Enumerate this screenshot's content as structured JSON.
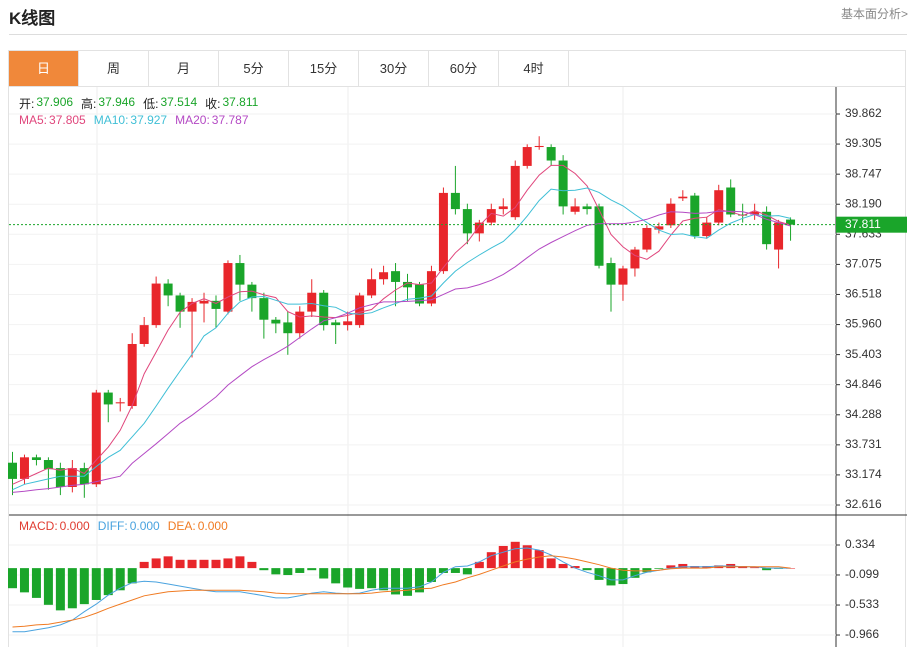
{
  "header": {
    "title": "K线图",
    "link": "基本面分析>"
  },
  "tabs": [
    "日",
    "周",
    "月",
    "5分",
    "15分",
    "30分",
    "60分",
    "4时"
  ],
  "active_tab": 0,
  "chart_data": [
    {
      "type": "candlestick",
      "up_color": "#e8262b",
      "down_color": "#1aa52a",
      "ohlc_labels": [
        "开:",
        "高:",
        "低:",
        "收:"
      ],
      "open": [
        33.4,
        33.1,
        33.5,
        33.45,
        33.3,
        32.95,
        33.3,
        33.0,
        34.7,
        34.5,
        34.45,
        35.6,
        35.95,
        36.72,
        36.5,
        36.2,
        36.35,
        36.4,
        36.2,
        37.1,
        36.7,
        36.45,
        36.05,
        36.0,
        35.8,
        36.2,
        36.55,
        36.0,
        35.95,
        35.95,
        36.5,
        36.8,
        36.95,
        36.75,
        36.7,
        36.35,
        36.95,
        38.4,
        38.1,
        37.65,
        37.85,
        38.1,
        37.95,
        38.9,
        39.25,
        39.25,
        39.0,
        38.05,
        38.15,
        38.15,
        37.1,
        36.7,
        37.0,
        37.35,
        37.72,
        37.8,
        38.3,
        38.35,
        37.6,
        37.85,
        38.5,
        38.0,
        38.0,
        38.05,
        37.35,
        37.906
      ],
      "high": [
        33.6,
        33.55,
        33.55,
        33.5,
        33.4,
        33.45,
        33.4,
        34.75,
        34.75,
        34.6,
        35.8,
        36.1,
        36.85,
        36.8,
        36.55,
        36.45,
        36.55,
        36.5,
        37.15,
        37.25,
        36.75,
        36.55,
        36.1,
        36.2,
        36.3,
        36.8,
        36.6,
        36.05,
        36.2,
        36.55,
        37.0,
        37.05,
        37.1,
        36.9,
        36.75,
        37.05,
        38.5,
        38.9,
        38.2,
        37.9,
        38.2,
        38.3,
        39.0,
        39.3,
        39.45,
        39.3,
        39.1,
        38.3,
        38.2,
        38.2,
        37.2,
        37.05,
        37.4,
        37.8,
        37.85,
        38.3,
        38.45,
        38.4,
        37.95,
        38.55,
        38.65,
        38.2,
        38.2,
        38.15,
        37.9,
        37.946
      ],
      "low": [
        32.8,
        33.0,
        33.35,
        32.9,
        32.8,
        32.85,
        32.75,
        32.95,
        34.15,
        34.35,
        34.4,
        35.55,
        35.9,
        36.3,
        35.9,
        35.35,
        36.0,
        35.9,
        36.15,
        36.4,
        36.2,
        35.7,
        35.8,
        35.4,
        35.7,
        36.1,
        35.85,
        35.6,
        35.85,
        35.9,
        36.45,
        36.7,
        36.3,
        36.4,
        36.3,
        36.3,
        36.9,
        38.0,
        37.45,
        37.5,
        37.8,
        38.0,
        37.9,
        38.85,
        39.2,
        38.9,
        38.0,
        38.0,
        38.0,
        37.0,
        36.2,
        36.4,
        36.85,
        37.3,
        37.65,
        37.75,
        38.25,
        37.55,
        37.55,
        37.8,
        37.95,
        37.85,
        37.9,
        37.35,
        37.0,
        37.514
      ],
      "close": [
        33.1,
        33.5,
        33.45,
        33.28,
        32.95,
        33.3,
        33.0,
        34.7,
        34.48,
        34.52,
        35.6,
        35.95,
        36.72,
        36.5,
        36.2,
        36.38,
        36.4,
        36.25,
        37.1,
        36.7,
        36.45,
        36.05,
        35.98,
        35.8,
        36.2,
        36.55,
        35.95,
        35.95,
        36.02,
        36.5,
        36.8,
        36.93,
        36.75,
        36.65,
        36.35,
        36.95,
        38.4,
        38.1,
        37.65,
        37.85,
        38.1,
        38.15,
        38.9,
        39.25,
        39.27,
        39.0,
        38.15,
        38.15,
        38.1,
        37.05,
        36.7,
        37.0,
        37.35,
        37.75,
        37.78,
        38.2,
        38.33,
        37.6,
        37.85,
        38.45,
        38.0,
        37.98,
        38.05,
        37.45,
        37.85,
        37.811
      ],
      "series": [
        {
          "name": "MA5:",
          "color": "#e0467c",
          "values": [
            33.0,
            33.1,
            33.2,
            33.3,
            33.26,
            33.3,
            33.2,
            33.45,
            33.69,
            34.0,
            34.46,
            35.05,
            35.45,
            35.86,
            36.19,
            36.35,
            36.44,
            36.35,
            36.47,
            36.57,
            36.58,
            36.51,
            36.46,
            36.2,
            36.1,
            36.12,
            36.1,
            36.09,
            36.13,
            36.19,
            36.24,
            36.44,
            36.6,
            36.73,
            36.7,
            36.73,
            37.02,
            37.29,
            37.49,
            37.79,
            38.02,
            37.97,
            38.13,
            38.45,
            38.73,
            38.91,
            38.91,
            38.76,
            38.53,
            38.09,
            37.63,
            37.4,
            37.24,
            37.17,
            37.32,
            37.62,
            37.88,
            37.93,
            37.95,
            38.09,
            38.05,
            37.98,
            38.07,
            37.99,
            37.87,
            37.805
          ]
        },
        {
          "name": "MA10:",
          "color": "#3fbfd6",
          "values": [
            32.9,
            33.0,
            33.05,
            33.1,
            33.15,
            33.15,
            33.15,
            33.33,
            33.5,
            33.63,
            33.88,
            34.13,
            34.45,
            34.78,
            35.1,
            35.41,
            35.75,
            35.9,
            36.17,
            36.38,
            36.47,
            36.48,
            36.41,
            36.34,
            36.34,
            36.35,
            36.31,
            36.28,
            36.17,
            36.15,
            36.18,
            36.27,
            36.35,
            36.43,
            36.45,
            36.49,
            36.73,
            36.95,
            37.11,
            37.25,
            37.38,
            37.5,
            37.71,
            37.97,
            38.26,
            38.47,
            38.44,
            38.45,
            38.49,
            38.41,
            38.27,
            38.16,
            38.0,
            37.85,
            37.71,
            37.63,
            37.64,
            37.59,
            37.56,
            37.71,
            37.84,
            37.93,
            38.0,
            37.97,
            37.98,
            37.927
          ]
        },
        {
          "name": "MA20:",
          "color": "#b44ac4",
          "values": [
            32.85,
            32.87,
            32.9,
            32.92,
            32.95,
            32.98,
            33.0,
            33.05,
            33.1,
            33.15,
            33.39,
            33.57,
            33.75,
            33.94,
            34.13,
            34.28,
            34.45,
            34.62,
            34.84,
            35.01,
            35.18,
            35.31,
            35.43,
            35.56,
            35.72,
            35.88,
            36.03,
            36.09,
            36.17,
            36.27,
            36.33,
            36.38,
            36.38,
            36.39,
            36.4,
            36.42,
            36.52,
            36.62,
            36.64,
            36.7,
            36.78,
            36.89,
            37.03,
            37.2,
            37.36,
            37.48,
            37.59,
            37.7,
            37.8,
            37.83,
            37.83,
            37.83,
            37.86,
            37.91,
            37.99,
            38.05,
            38.04,
            38.02,
            38.03,
            38.06,
            38.06,
            38.05,
            38.0,
            37.91,
            37.85,
            37.787
          ]
        }
      ],
      "ylim": [
        32.431,
        40.344
      ],
      "yticks": [
        39.862,
        39.305,
        38.747,
        {
          "value": 38.19,
          "label": "38.190"
        },
        37.633,
        37.075,
        36.518,
        {
          "value": 35.96,
          "label": "35.960"
        },
        35.403,
        34.846,
        34.288,
        33.731,
        33.174,
        32.616
      ],
      "grid": true
    },
    {
      "type": "macd",
      "up_color": "#e8262b",
      "down_color": "#1aa52a",
      "bar": {
        "name": "MACD:",
        "color": "#e03c31",
        "value_label": "0.000",
        "values": [
          -0.29,
          -0.35,
          -0.43,
          -0.53,
          -0.61,
          -0.58,
          -0.52,
          -0.46,
          -0.39,
          -0.32,
          -0.22,
          0.09,
          0.14,
          0.17,
          0.12,
          0.12,
          0.12,
          0.12,
          0.14,
          0.17,
          0.09,
          -0.03,
          -0.09,
          -0.1,
          -0.07,
          -0.03,
          -0.15,
          -0.22,
          -0.28,
          -0.3,
          -0.29,
          -0.32,
          -0.38,
          -0.4,
          -0.35,
          -0.2,
          -0.07,
          -0.07,
          -0.09,
          0.09,
          0.23,
          0.32,
          0.38,
          0.33,
          0.26,
          0.14,
          0.06,
          0.03,
          -0.03,
          -0.17,
          -0.25,
          -0.23,
          -0.14,
          -0.06,
          -0.01,
          0.04,
          0.06,
          0.03,
          0.03,
          0.04,
          0.06,
          0.03,
          0.01,
          -0.03,
          -0.01,
          0
        ]
      },
      "series": [
        {
          "name": "DIFF:",
          "color": "#4aa3df",
          "value_label": "0.000",
          "values": [
            -0.92,
            -0.92,
            -0.89,
            -0.86,
            -0.82,
            -0.75,
            -0.63,
            -0.52,
            -0.39,
            -0.29,
            -0.21,
            -0.19,
            -0.2,
            -0.23,
            -0.26,
            -0.29,
            -0.32,
            -0.34,
            -0.34,
            -0.34,
            -0.37,
            -0.4,
            -0.43,
            -0.43,
            -0.4,
            -0.36,
            -0.34,
            -0.36,
            -0.37,
            -0.36,
            -0.32,
            -0.29,
            -0.29,
            -0.29,
            -0.27,
            -0.2,
            -0.06,
            0.02,
            0.03,
            0.09,
            0.18,
            0.23,
            0.28,
            0.29,
            0.26,
            0.19,
            0.09,
            0,
            -0.06,
            -0.11,
            -0.17,
            -0.17,
            -0.11,
            -0.06,
            -0.03,
            0,
            0.02,
            0.02,
            0.02,
            0.03,
            0.03,
            0.02,
            0.02,
            0,
            0,
            0
          ]
        },
        {
          "name": "DEA:",
          "color": "#f07b23",
          "value_label": "0.000",
          "values": [
            -0.85,
            -0.84,
            -0.82,
            -0.81,
            -0.78,
            -0.75,
            -0.71,
            -0.65,
            -0.58,
            -0.52,
            -0.46,
            -0.4,
            -0.37,
            -0.34,
            -0.33,
            -0.32,
            -0.32,
            -0.32,
            -0.32,
            -0.32,
            -0.33,
            -0.34,
            -0.36,
            -0.37,
            -0.37,
            -0.37,
            -0.37,
            -0.37,
            -0.37,
            -0.37,
            -0.36,
            -0.34,
            -0.33,
            -0.32,
            -0.3,
            -0.29,
            -0.24,
            -0.2,
            -0.14,
            -0.09,
            -0.03,
            0.03,
            0.09,
            0.13,
            0.16,
            0.18,
            0.16,
            0.13,
            0.09,
            0.05,
            0,
            -0.03,
            -0.04,
            -0.04,
            -0.03,
            -0.01,
            0,
            0,
            0,
            0.02,
            0.02,
            0.02,
            0.02,
            0.02,
            0.02,
            0
          ]
        }
      ],
      "ylim": [
        -1.139,
        0.767
      ],
      "yticks": [
        0.334,
        -0.099,
        -0.533,
        -0.966
      ],
      "grid": true
    }
  ]
}
